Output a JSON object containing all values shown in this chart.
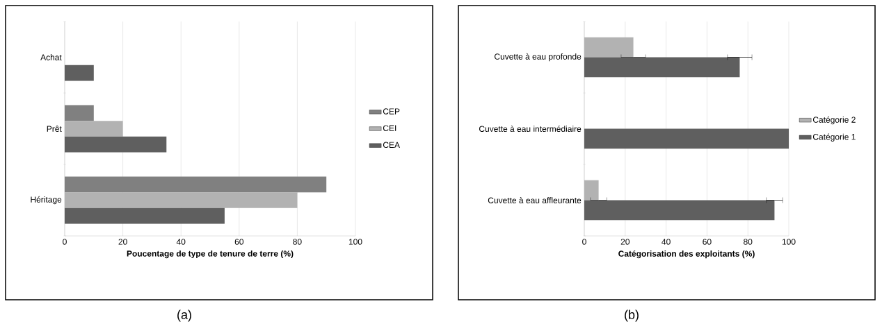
{
  "chart_data": [
    {
      "type": "bar",
      "orientation": "horizontal",
      "categories": [
        "Achat",
        "Prêt",
        "Héritage"
      ],
      "series": [
        {
          "name": "CEP",
          "color": "#808080",
          "values": [
            null,
            10,
            90
          ]
        },
        {
          "name": "CEI",
          "color": "#b2b2b2",
          "values": [
            null,
            20,
            80
          ]
        },
        {
          "name": "CEA",
          "color": "#5f5f5f",
          "values": [
            10,
            35,
            55
          ]
        }
      ],
      "xlabel": "Poucentage de type de tenure de terre (%)",
      "xlim": [
        0,
        100
      ],
      "xticks": [
        0,
        20,
        40,
        60,
        80,
        100
      ],
      "grid": "x",
      "legend": "right",
      "annotations": [
        "(a)"
      ]
    },
    {
      "type": "bar",
      "orientation": "horizontal",
      "categories": [
        "Cuvette à eau profonde",
        "Cuvette à eau intermédiaire",
        "Cuvette à eau affleurante"
      ],
      "series": [
        {
          "name": "Catégorie 2",
          "color": "#b2b2b2",
          "values": [
            24,
            null,
            7
          ],
          "errors": [
            6,
            null,
            4
          ]
        },
        {
          "name": "Catégorie 1",
          "color": "#5f5f5f",
          "values": [
            76,
            100,
            93
          ],
          "errors": [
            6,
            null,
            4
          ]
        }
      ],
      "xlabel": "Catégorisation des exploitants (%)",
      "xlim": [
        0,
        100
      ],
      "xticks": [
        0,
        20,
        40,
        60,
        80,
        100
      ],
      "grid": "x",
      "legend": "right",
      "annotations": [
        "(b)"
      ]
    }
  ]
}
